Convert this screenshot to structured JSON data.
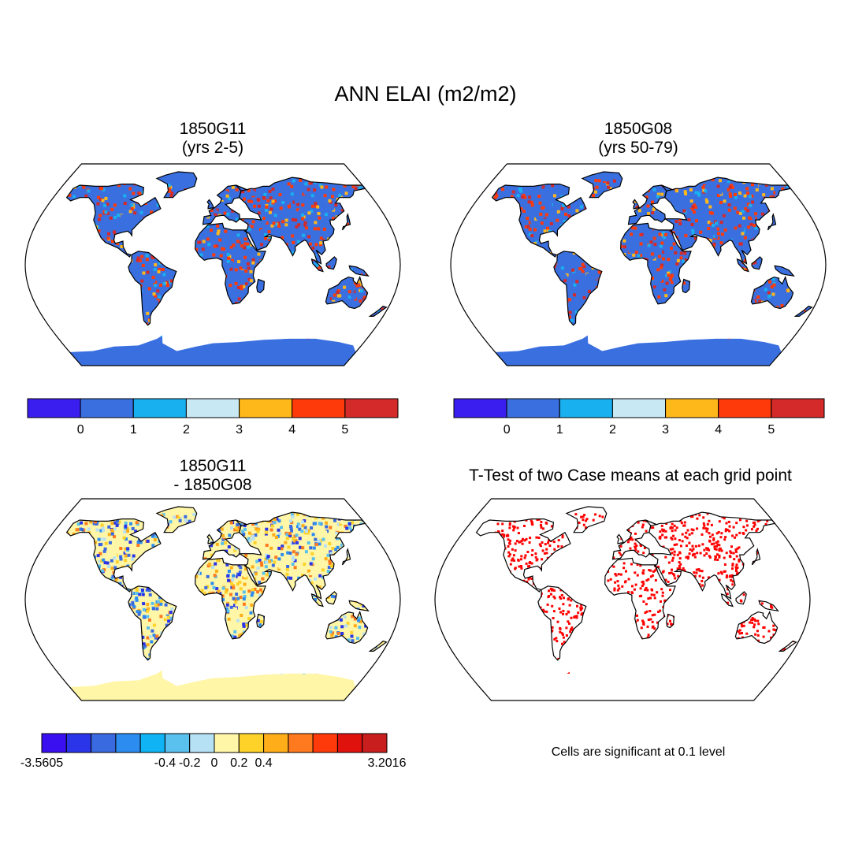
{
  "title": "ANN ELAI (m2/m2)",
  "panels": [
    {
      "id": "g11",
      "title": "1850G11\n(yrs 2-5)",
      "type": "field"
    },
    {
      "id": "g08",
      "title": "1850G08\n(yrs 50-79)",
      "type": "field"
    },
    {
      "id": "diff",
      "title": "1850G11\n- 1850G08",
      "type": "difference"
    },
    {
      "id": "ttest",
      "title": "T-Test of two Case means at each grid point",
      "type": "significance"
    }
  ],
  "colorbars": {
    "field": {
      "colors": [
        "#3a1ef0",
        "#3a6fe0",
        "#19b0f0",
        "#c8e8f4",
        "#ffb81a",
        "#ff3a0a",
        "#d42a2a"
      ],
      "labels": [
        "0",
        "1",
        "2",
        "3",
        "4",
        "5"
      ]
    },
    "difference": {
      "colors": [
        "#3a0ff0",
        "#2a34e8",
        "#3a6ae0",
        "#2c8cf0",
        "#10b4f4",
        "#5ac0ee",
        "#b6e0f4",
        "#fff6a8",
        "#ffd22a",
        "#ffae1a",
        "#ff7a1e",
        "#ff3a0a",
        "#e0120e",
        "#c81e1e"
      ],
      "labels": [
        "-3.5605",
        "-0.4",
        "-0.2",
        "0",
        "0.2",
        "0.4",
        "3.2016"
      ]
    }
  },
  "significance_color": "#ff0000",
  "note": "Cells are significant at 0.1 level"
}
